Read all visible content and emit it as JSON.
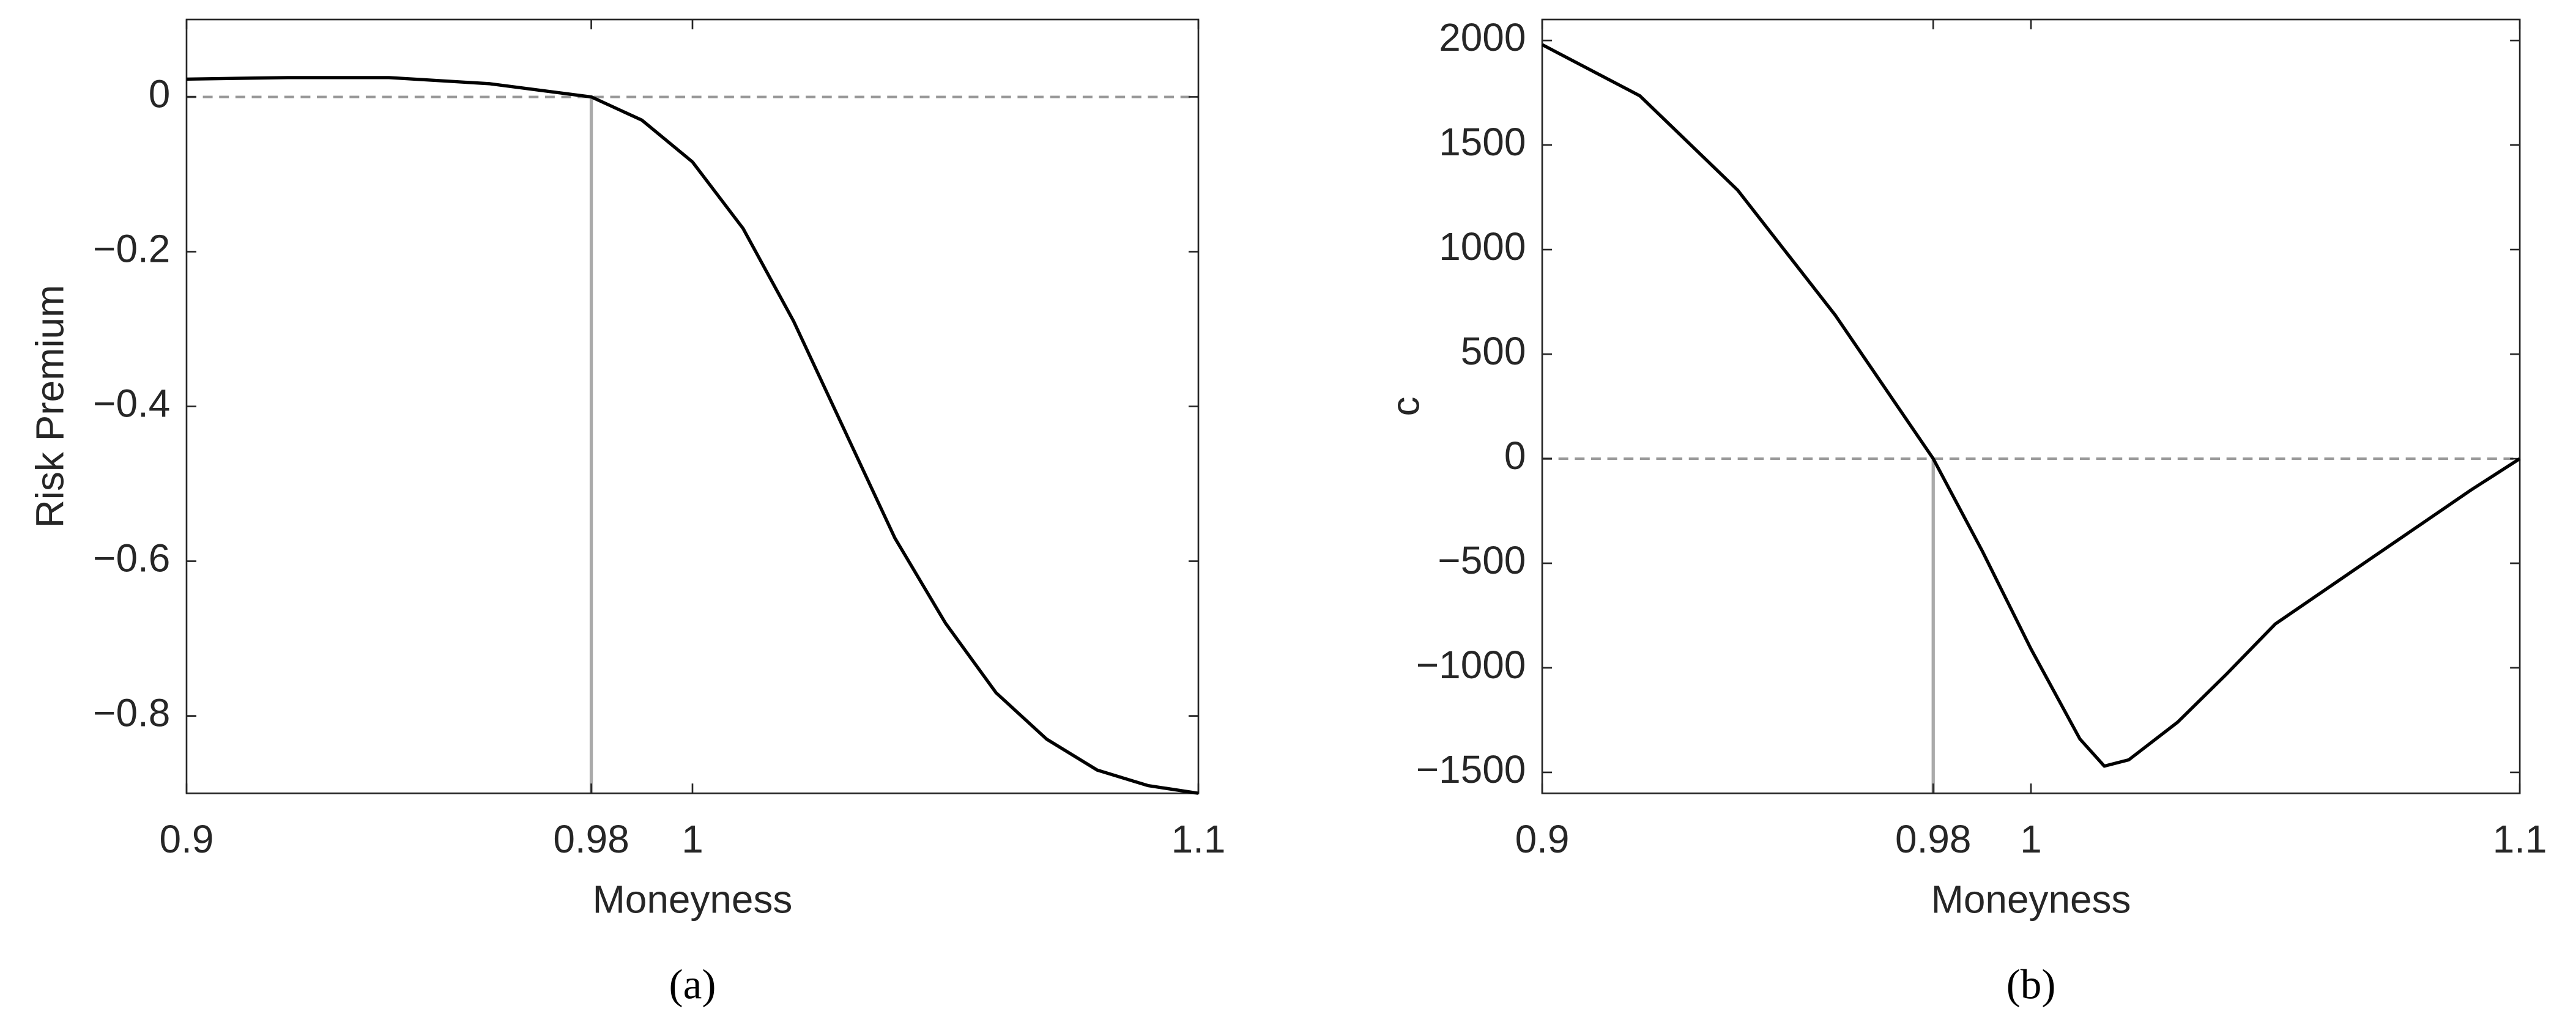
{
  "chart_data": [
    {
      "type": "line",
      "caption": "(a)",
      "xlabel": "Moneyness",
      "ylabel": "Risk Premium",
      "x": [
        0.9,
        0.92,
        0.94,
        0.96,
        0.98,
        0.99,
        1.0,
        1.01,
        1.02,
        1.03,
        1.04,
        1.05,
        1.06,
        1.07,
        1.08,
        1.09,
        1.1
      ],
      "series": [
        {
          "color": "#000000",
          "values": [
            0.023,
            0.025,
            0.025,
            0.017,
            0,
            -0.03,
            -0.084,
            -0.17,
            -0.29,
            -0.43,
            -0.57,
            -0.68,
            -0.77,
            -0.83,
            -0.87,
            -0.89,
            -0.9
          ]
        }
      ],
      "xlim": [
        0.9,
        1.1
      ],
      "xticks": [
        0.9,
        0.98,
        1,
        1.1
      ],
      "ylim": [
        -0.9,
        0.1
      ],
      "yticks": [
        {
          "value": -0.8,
          "label": "−0.8"
        },
        {
          "value": -0.6,
          "label": "−0.6"
        },
        {
          "value": -0.4,
          "label": "−0.4"
        },
        {
          "value": -0.2,
          "label": "−0.2"
        },
        0
      ],
      "hline": 0,
      "vline": 0.98
    },
    {
      "type": "line",
      "caption": "(b)",
      "xlabel": "Moneyness",
      "ylabel": "c",
      "x": [
        0.9,
        0.92,
        0.94,
        0.96,
        0.98,
        0.99,
        1.0,
        1.01,
        1.015,
        1.02,
        1.03,
        1.04,
        1.05,
        1.06,
        1.07,
        1.08,
        1.09,
        1.1
      ],
      "series": [
        {
          "color": "#000000",
          "values": [
            1980,
            1735,
            1284,
            685,
            0,
            -440,
            -910,
            -1340,
            -1470,
            -1440,
            -1260,
            -1030,
            -790,
            -630,
            -470,
            -310,
            -150,
            0
          ]
        }
      ],
      "xlim": [
        0.9,
        1.1
      ],
      "xticks": [
        0.9,
        0.98,
        1,
        1.1
      ],
      "ylim": [
        -1600,
        2100
      ],
      "yticks": [
        {
          "value": -1500,
          "label": "−1500"
        },
        {
          "value": -1000,
          "label": "−1000"
        },
        {
          "value": -500,
          "label": "−500"
        },
        0,
        500,
        1000,
        1500,
        2000
      ],
      "hline": 0,
      "vline": 0.98
    }
  ]
}
